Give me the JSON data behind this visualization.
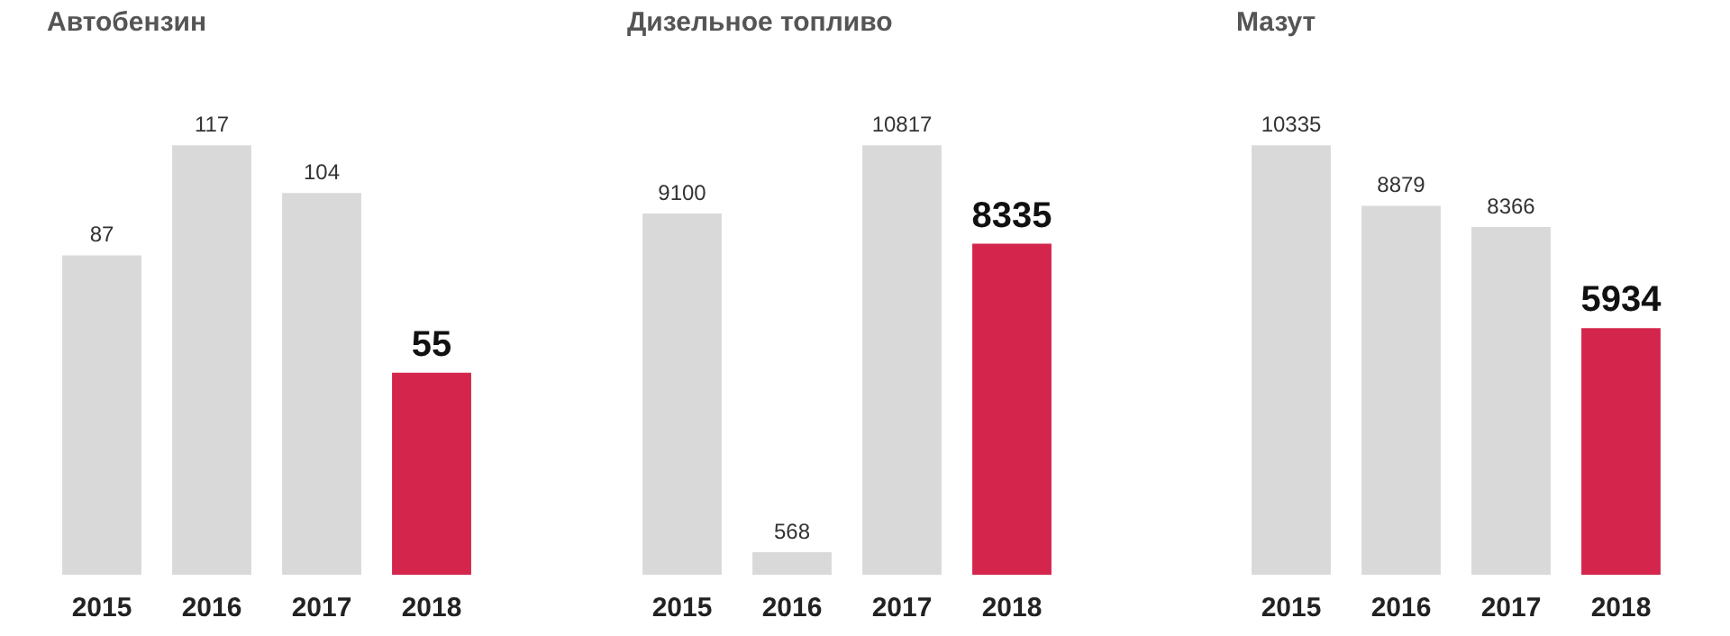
{
  "chart_data": [
    {
      "type": "bar",
      "title": "Автобензин",
      "categories": [
        "2015",
        "2016",
        "2017",
        "2018"
      ],
      "values": [
        87,
        117,
        104,
        55
      ],
      "colors": [
        "#d9d9d9",
        "#d9d9d9",
        "#d9d9d9",
        "#d4254c"
      ],
      "data_labels": true,
      "legend": false,
      "grid": false
    },
    {
      "type": "bar",
      "title": "Дизельное топливо",
      "categories": [
        "2015",
        "2016",
        "2017",
        "2018"
      ],
      "values": [
        9100,
        568,
        10817,
        8335
      ],
      "colors": [
        "#d9d9d9",
        "#d9d9d9",
        "#d9d9d9",
        "#d4254c"
      ],
      "data_labels": true,
      "legend": false,
      "grid": false
    },
    {
      "type": "bar",
      "title": "Мазут",
      "categories": [
        "2015",
        "2016",
        "2017",
        "2018"
      ],
      "values": [
        10335,
        8879,
        8366,
        5934
      ],
      "colors": [
        "#d9d9d9",
        "#d9d9d9",
        "#d9d9d9",
        "#d4254c"
      ],
      "data_labels": true,
      "legend": false,
      "grid": false
    }
  ]
}
